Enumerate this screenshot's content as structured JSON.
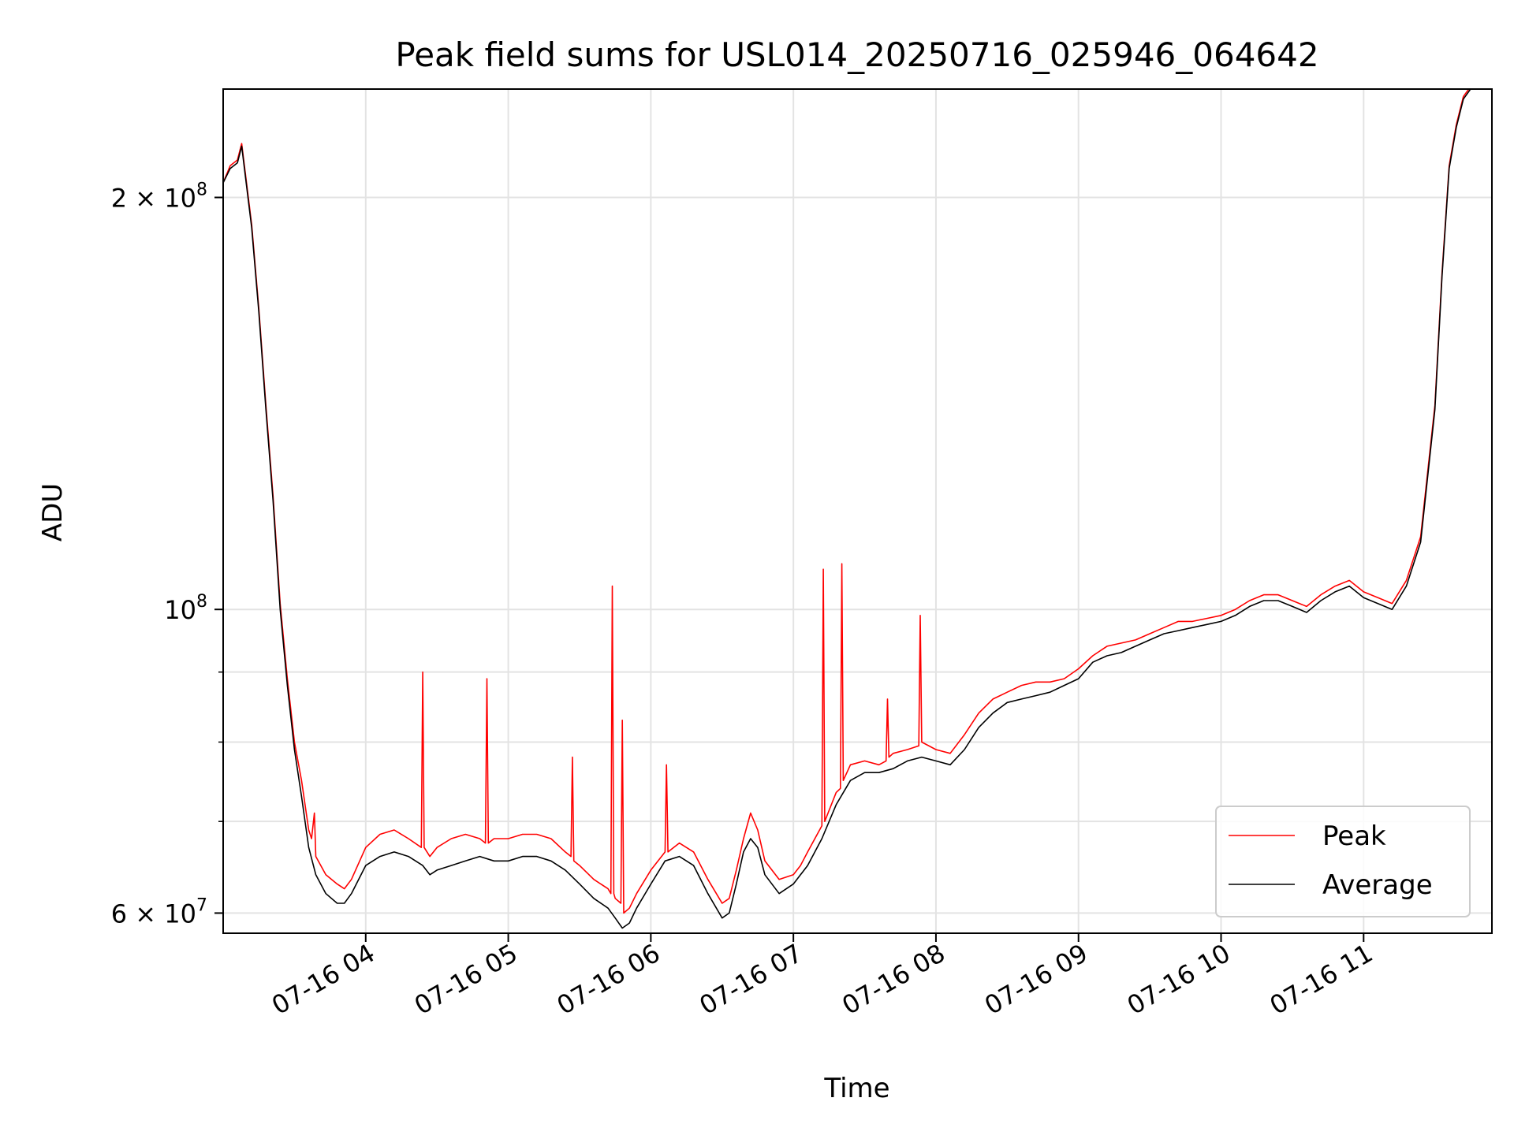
{
  "chart_data": {
    "type": "line",
    "title": "Peak field sums for USL014_20250716_025946_064642",
    "xlabel": "Time",
    "ylabel": "ADU",
    "x_unit": "hour of 2025-07-16",
    "xlim": [
      3.0,
      11.9
    ],
    "ylim": [
      58000000,
      240000000
    ],
    "y_scale": "log",
    "grid": true,
    "legend": {
      "position": "bottom-right"
    },
    "x_ticks": [
      {
        "value": 4,
        "label": "07-16 04"
      },
      {
        "value": 5,
        "label": "07-16 05"
      },
      {
        "value": 6,
        "label": "07-16 06"
      },
      {
        "value": 7,
        "label": "07-16 07"
      },
      {
        "value": 8,
        "label": "07-16 08"
      },
      {
        "value": 9,
        "label": "07-16 09"
      },
      {
        "value": 10,
        "label": "07-16 10"
      },
      {
        "value": 11,
        "label": "07-16 11"
      }
    ],
    "y_ticks": [
      {
        "value": 60000000,
        "mantissa": "6 × 10",
        "exp": "7"
      },
      {
        "value": 100000000,
        "mantissa": "10",
        "exp": "8"
      },
      {
        "value": 200000000,
        "mantissa": "2 × 10",
        "exp": "8"
      }
    ],
    "y_minor_ticks": [
      70000000,
      80000000,
      90000000
    ],
    "series": [
      {
        "name": "Average",
        "color": "#000000",
        "x": [
          3.0,
          3.05,
          3.1,
          3.13,
          3.2,
          3.25,
          3.3,
          3.35,
          3.4,
          3.45,
          3.5,
          3.55,
          3.6,
          3.65,
          3.72,
          3.8,
          3.85,
          3.9,
          4.0,
          4.1,
          4.2,
          4.3,
          4.4,
          4.45,
          4.5,
          4.6,
          4.7,
          4.8,
          4.9,
          5.0,
          5.1,
          5.2,
          5.3,
          5.4,
          5.5,
          5.6,
          5.7,
          5.75,
          5.8,
          5.85,
          5.9,
          6.0,
          6.1,
          6.2,
          6.3,
          6.4,
          6.5,
          6.55,
          6.6,
          6.65,
          6.7,
          6.75,
          6.8,
          6.9,
          7.0,
          7.05,
          7.1,
          7.2,
          7.3,
          7.4,
          7.5,
          7.6,
          7.7,
          7.8,
          7.9,
          8.0,
          8.1,
          8.2,
          8.3,
          8.4,
          8.5,
          8.6,
          8.7,
          8.8,
          8.9,
          9.0,
          9.1,
          9.2,
          9.3,
          9.4,
          9.5,
          9.6,
          9.7,
          9.8,
          9.9,
          10.0,
          10.1,
          10.2,
          10.3,
          10.4,
          10.5,
          10.6,
          10.7,
          10.8,
          10.9,
          11.0,
          11.1,
          11.2,
          11.3,
          11.4,
          11.5,
          11.55,
          11.6,
          11.65,
          11.7,
          11.75,
          11.8,
          11.9
        ],
        "y": [
          205000000,
          210000000,
          212000000,
          218000000,
          190000000,
          165000000,
          140000000,
          120000000,
          100000000,
          88000000,
          79000000,
          73000000,
          67000000,
          64000000,
          62000000,
          61000000,
          61000000,
          62000000,
          65000000,
          66000000,
          66500000,
          66000000,
          65000000,
          64000000,
          64500000,
          65000000,
          65500000,
          66000000,
          65500000,
          65500000,
          66000000,
          66000000,
          65500000,
          64500000,
          63000000,
          61500000,
          60500000,
          59500000,
          58500000,
          59000000,
          60500000,
          63000000,
          65500000,
          66000000,
          65000000,
          62000000,
          59500000,
          60000000,
          63000000,
          66500000,
          68000000,
          67000000,
          64000000,
          62000000,
          63000000,
          64000000,
          65000000,
          68000000,
          72000000,
          75000000,
          76000000,
          76000000,
          76500000,
          77500000,
          78000000,
          77500000,
          77000000,
          79000000,
          82000000,
          84000000,
          85500000,
          86000000,
          86500000,
          87000000,
          88000000,
          89000000,
          91500000,
          92500000,
          93000000,
          94000000,
          95000000,
          96000000,
          96500000,
          97000000,
          97500000,
          98000000,
          99000000,
          100500000,
          101500000,
          101500000,
          100500000,
          99500000,
          101500000,
          103000000,
          104000000,
          102000000,
          101000000,
          100000000,
          104000000,
          112000000,
          140000000,
          175000000,
          210000000,
          225000000,
          236000000,
          240000000,
          240000000,
          240000000
        ]
      },
      {
        "name": "Peak",
        "color": "#ff0000",
        "x": [
          3.0,
          3.05,
          3.1,
          3.13,
          3.2,
          3.25,
          3.3,
          3.35,
          3.4,
          3.45,
          3.5,
          3.55,
          3.6,
          3.62,
          3.64,
          3.65,
          3.72,
          3.8,
          3.85,
          3.9,
          4.0,
          4.1,
          4.2,
          4.3,
          4.39,
          4.4,
          4.41,
          4.45,
          4.5,
          4.6,
          4.7,
          4.8,
          4.84,
          4.85,
          4.86,
          4.9,
          5.0,
          5.1,
          5.2,
          5.3,
          5.4,
          5.44,
          5.45,
          5.46,
          5.5,
          5.6,
          5.7,
          5.72,
          5.73,
          5.74,
          5.75,
          5.79,
          5.8,
          5.81,
          5.85,
          5.9,
          6.0,
          6.1,
          6.11,
          6.12,
          6.2,
          6.3,
          6.4,
          6.5,
          6.55,
          6.6,
          6.65,
          6.7,
          6.75,
          6.8,
          6.9,
          7.0,
          7.05,
          7.1,
          7.2,
          7.21,
          7.22,
          7.3,
          7.33,
          7.34,
          7.35,
          7.4,
          7.5,
          7.6,
          7.65,
          7.66,
          7.67,
          7.7,
          7.8,
          7.88,
          7.89,
          7.9,
          8.0,
          8.1,
          8.2,
          8.3,
          8.4,
          8.5,
          8.6,
          8.7,
          8.8,
          8.9,
          9.0,
          9.1,
          9.2,
          9.3,
          9.4,
          9.5,
          9.6,
          9.7,
          9.8,
          9.9,
          10.0,
          10.1,
          10.2,
          10.3,
          10.4,
          10.5,
          10.6,
          10.7,
          10.8,
          10.9,
          11.0,
          11.1,
          11.2,
          11.3,
          11.4,
          11.5,
          11.55,
          11.6,
          11.65,
          11.7,
          11.75,
          11.8,
          11.9
        ],
        "y": [
          205000000,
          211000000,
          213000000,
          219000000,
          191000000,
          166000000,
          141000000,
          121000000,
          101000000,
          89000000,
          80000000,
          75000000,
          69000000,
          68000000,
          71000000,
          66000000,
          64000000,
          63000000,
          62500000,
          63500000,
          67000000,
          68500000,
          69000000,
          68000000,
          67000000,
          90000000,
          67000000,
          66000000,
          67000000,
          68000000,
          68500000,
          68000000,
          67500000,
          89000000,
          67500000,
          68000000,
          68000000,
          68500000,
          68500000,
          68000000,
          66500000,
          66000000,
          78000000,
          65500000,
          65000000,
          63500000,
          62500000,
          62000000,
          104000000,
          62000000,
          61500000,
          61000000,
          83000000,
          60000000,
          60500000,
          62000000,
          64500000,
          66500000,
          77000000,
          66500000,
          67500000,
          66500000,
          63500000,
          61000000,
          61500000,
          64500000,
          68000000,
          71000000,
          69000000,
          65500000,
          63500000,
          64000000,
          65000000,
          66500000,
          69500000,
          107000000,
          70000000,
          73500000,
          74000000,
          108000000,
          75000000,
          77000000,
          77500000,
          77000000,
          77500000,
          86000000,
          78000000,
          78500000,
          79000000,
          79500000,
          99000000,
          80000000,
          79000000,
          78500000,
          81000000,
          84000000,
          86000000,
          87000000,
          88000000,
          88500000,
          88500000,
          89000000,
          90500000,
          92500000,
          94000000,
          94500000,
          95000000,
          96000000,
          97000000,
          98000000,
          98000000,
          98500000,
          99000000,
          100000000,
          101500000,
          102500000,
          102500000,
          101500000,
          100500000,
          102500000,
          104000000,
          105000000,
          103000000,
          102000000,
          101000000,
          105000000,
          113000000,
          141000000,
          176000000,
          211000000,
          226000000,
          237000000,
          241000000,
          241000000,
          241000000
        ]
      }
    ]
  }
}
